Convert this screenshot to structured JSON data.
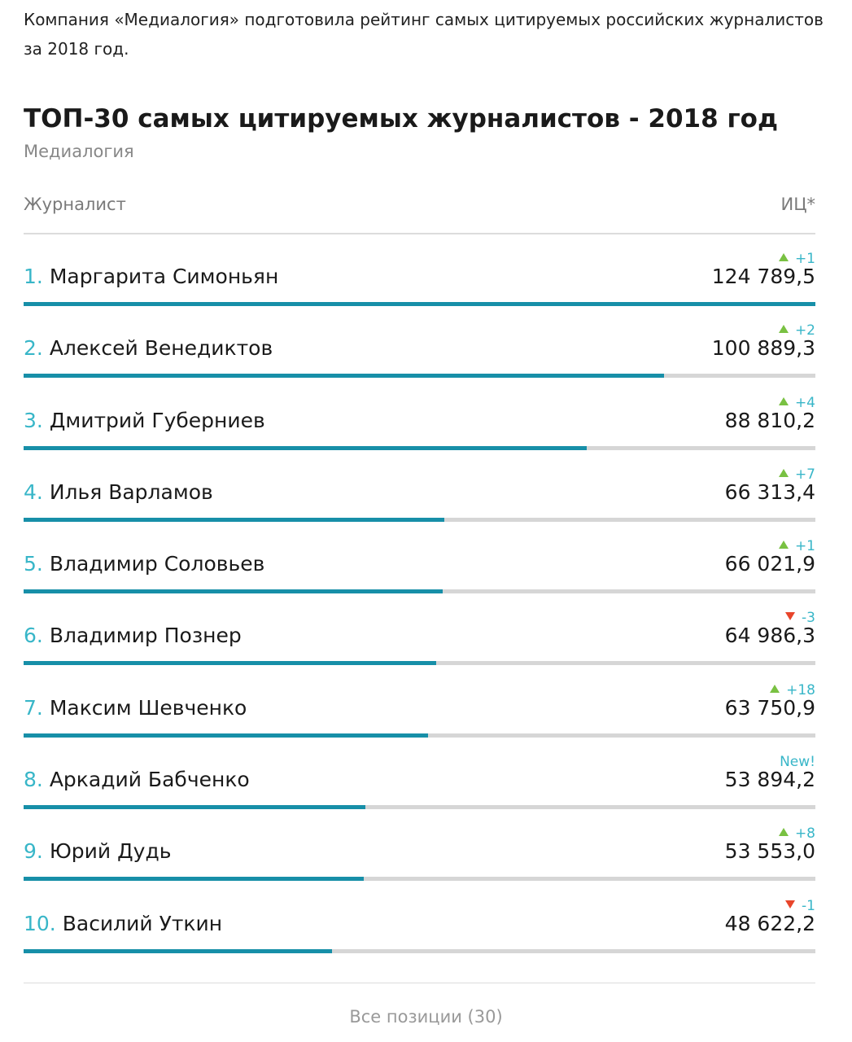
{
  "intro_text": "Компания «Медиалогия» подготовила рейтинг самых цитируемых российских журналистов за 2018 год.",
  "chart_data": {
    "type": "bar",
    "title": "ТОП-30 самых цитируемых журналистов - 2018 год",
    "subtitle": "Медиалогия",
    "xlabel": "Журналист",
    "ylabel": "ИЦ*",
    "max_value": 124789.5,
    "rows": [
      {
        "rank": "1.",
        "name": "Маргарита Симоньян",
        "value": 124789.5,
        "value_label": "124 789,5",
        "change": "+1",
        "direction": "up"
      },
      {
        "rank": "2.",
        "name": "Алексей Венедиктов",
        "value": 100889.3,
        "value_label": "100 889,3",
        "change": "+2",
        "direction": "up"
      },
      {
        "rank": "3.",
        "name": "Дмитрий Губерниев",
        "value": 88810.2,
        "value_label": "88 810,2",
        "change": "+4",
        "direction": "up"
      },
      {
        "rank": "4.",
        "name": "Илья Варламов",
        "value": 66313.4,
        "value_label": "66 313,4",
        "change": "+7",
        "direction": "up"
      },
      {
        "rank": "5.",
        "name": "Владимир Соловьев",
        "value": 66021.9,
        "value_label": "66 021,9",
        "change": "+1",
        "direction": "up"
      },
      {
        "rank": "6.",
        "name": "Владимир Познер",
        "value": 64986.3,
        "value_label": "64 986,3",
        "change": "-3",
        "direction": "down"
      },
      {
        "rank": "7.",
        "name": "Максим Шевченко",
        "value": 63750.9,
        "value_label": "63 750,9",
        "change": "+18",
        "direction": "up"
      },
      {
        "rank": "8.",
        "name": "Аркадий Бабченко",
        "value": 53894.2,
        "value_label": "53 894,2",
        "change": "New!",
        "direction": "new"
      },
      {
        "rank": "9.",
        "name": "Юрий Дудь",
        "value": 53553.0,
        "value_label": "53 553,0",
        "change": "+8",
        "direction": "up"
      },
      {
        "rank": "10.",
        "name": "Василий Уткин",
        "value": 48622.2,
        "value_label": "48 622,2",
        "change": "-1",
        "direction": "down"
      }
    ]
  },
  "footer": {
    "all_positions_label": "Все позиции (30)"
  },
  "colors": {
    "bar_fill": "#178fa8",
    "bar_track": "#d6d6d6",
    "rank_color": "#38b6c8",
    "up_arrow": "#79c142",
    "down_arrow": "#e8452b"
  }
}
